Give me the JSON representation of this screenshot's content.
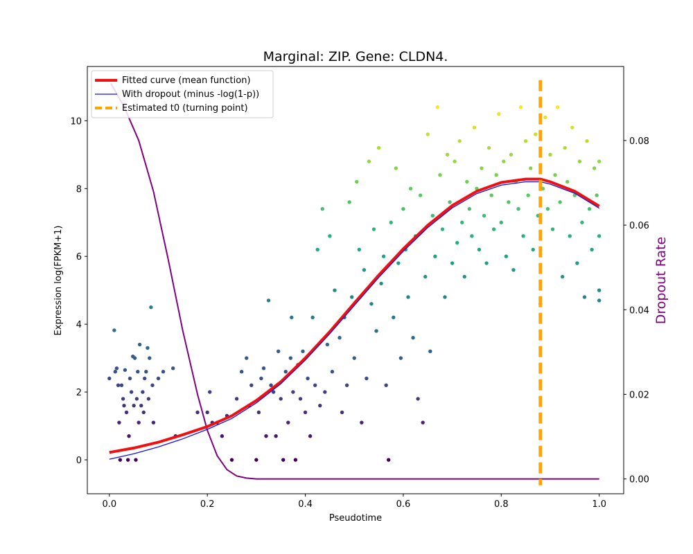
{
  "chart_data": {
    "type": "scatter",
    "title": "Marginal: ZIP. Gene: CLDN4.",
    "xlabel": "Pseudotime",
    "ylabel": "Expression log(FPKM+1)",
    "ylabel_right": "Dropout Rate",
    "xlim": [
      -0.045,
      1.05
    ],
    "ylim": [
      -1.0,
      11.6
    ],
    "ylim_right": [
      -0.0035,
      0.0975
    ],
    "x_ticks": [
      "0.0",
      "0.2",
      "0.4",
      "0.6",
      "0.8",
      "1.0"
    ],
    "y_ticks": [
      "0",
      "2",
      "4",
      "6",
      "8",
      "10"
    ],
    "y_right_ticks": [
      "0.00",
      "0.02",
      "0.04",
      "0.06",
      "0.08"
    ],
    "grid": false,
    "legend_position": "top-left",
    "legend": [
      {
        "label": "Fitted curve (mean function)",
        "color": "#ee1111",
        "style": "solid-thick"
      },
      {
        "label": "With dropout (minus -log(1-p))",
        "color": "#1111ee",
        "style": "solid-thin"
      },
      {
        "label": "Estimated t0 (turning point)",
        "color": "#ffa500",
        "style": "dashed"
      }
    ],
    "colors": {
      "fitted": "#ee1111",
      "dropout_curve": "#1111ee",
      "t0": "#ffa500",
      "dropout_rate": "#800080",
      "scatter_colormap": "viridis"
    },
    "t0": 0.88,
    "fitted_curve": {
      "x": [
        0.0,
        0.05,
        0.1,
        0.15,
        0.2,
        0.25,
        0.3,
        0.35,
        0.4,
        0.45,
        0.5,
        0.55,
        0.6,
        0.65,
        0.7,
        0.75,
        0.8,
        0.85,
        0.88,
        0.9,
        0.95,
        1.0
      ],
      "y": [
        0.22,
        0.35,
        0.52,
        0.74,
        0.98,
        1.3,
        1.75,
        2.3,
        3.0,
        3.78,
        4.62,
        5.45,
        6.22,
        6.92,
        7.5,
        7.92,
        8.18,
        8.28,
        8.28,
        8.2,
        7.92,
        7.48
      ]
    },
    "dropout_curve": {
      "x": [
        0.0,
        0.05,
        0.1,
        0.15,
        0.2,
        0.25,
        0.3,
        0.35,
        0.4,
        0.45,
        0.5,
        0.55,
        0.6,
        0.65,
        0.7,
        0.75,
        0.8,
        0.85,
        0.88,
        0.9,
        0.95,
        1.0
      ],
      "y": [
        0.02,
        0.18,
        0.38,
        0.62,
        0.9,
        1.22,
        1.68,
        2.24,
        2.94,
        3.72,
        4.55,
        5.38,
        6.15,
        6.85,
        7.43,
        7.85,
        8.1,
        8.2,
        8.2,
        8.13,
        7.86,
        7.42
      ]
    },
    "dropout_rate_curve": {
      "x": [
        0.003,
        0.03,
        0.06,
        0.09,
        0.12,
        0.15,
        0.18,
        0.2,
        0.22,
        0.24,
        0.26,
        0.28,
        0.3,
        0.32,
        0.4,
        0.6,
        0.8,
        1.0
      ],
      "y": [
        0.0935,
        0.088,
        0.08,
        0.068,
        0.052,
        0.035,
        0.02,
        0.0115,
        0.0055,
        0.0022,
        0.0007,
        0.0002,
        0.0,
        0.0,
        0.0,
        0.0,
        0.0,
        0.0
      ]
    },
    "points": [
      [
        0.0,
        2.4
      ],
      [
        0.01,
        3.82
      ],
      [
        0.012,
        2.6
      ],
      [
        0.015,
        2.7
      ],
      [
        0.018,
        2.2
      ],
      [
        0.02,
        1.1
      ],
      [
        0.022,
        0.0
      ],
      [
        0.025,
        2.2
      ],
      [
        0.028,
        1.8
      ],
      [
        0.03,
        1.6
      ],
      [
        0.032,
        2.65
      ],
      [
        0.035,
        1.4
      ],
      [
        0.038,
        0.0
      ],
      [
        0.04,
        0.7
      ],
      [
        0.042,
        2.4
      ],
      [
        0.045,
        2.0
      ],
      [
        0.048,
        3.05
      ],
      [
        0.05,
        1.6
      ],
      [
        0.052,
        3.0
      ],
      [
        0.054,
        0.0
      ],
      [
        0.056,
        1.8
      ],
      [
        0.058,
        2.6
      ],
      [
        0.06,
        1.1
      ],
      [
        0.062,
        3.4
      ],
      [
        0.065,
        1.6
      ],
      [
        0.068,
        2.0
      ],
      [
        0.07,
        1.4
      ],
      [
        0.072,
        2.4
      ],
      [
        0.075,
        2.6
      ],
      [
        0.078,
        3.3
      ],
      [
        0.08,
        1.8
      ],
      [
        0.082,
        3.0
      ],
      [
        0.085,
        4.5
      ],
      [
        0.088,
        2.2
      ],
      [
        0.09,
        1.1
      ],
      [
        0.1,
        2.4
      ],
      [
        0.11,
        2.6
      ],
      [
        0.13,
        2.7
      ],
      [
        0.135,
        0.7
      ],
      [
        0.18,
        1.4
      ],
      [
        0.2,
        1.4
      ],
      [
        0.205,
        2.0
      ],
      [
        0.21,
        1.1
      ],
      [
        0.22,
        1.1
      ],
      [
        0.23,
        0.7
      ],
      [
        0.24,
        1.3
      ],
      [
        0.25,
        0.0
      ],
      [
        0.26,
        1.8
      ],
      [
        0.27,
        2.6
      ],
      [
        0.28,
        3.0
      ],
      [
        0.285,
        1.6
      ],
      [
        0.29,
        2.2
      ],
      [
        0.3,
        0.0
      ],
      [
        0.305,
        1.4
      ],
      [
        0.31,
        2.4
      ],
      [
        0.315,
        2.7
      ],
      [
        0.32,
        0.7
      ],
      [
        0.325,
        4.7
      ],
      [
        0.33,
        2.2
      ],
      [
        0.335,
        2.0
      ],
      [
        0.34,
        0.7
      ],
      [
        0.345,
        3.2
      ],
      [
        0.35,
        1.8
      ],
      [
        0.355,
        0.0
      ],
      [
        0.36,
        2.6
      ],
      [
        0.365,
        1.1
      ],
      [
        0.37,
        3.0
      ],
      [
        0.372,
        4.2
      ],
      [
        0.375,
        2.0
      ],
      [
        0.38,
        0.0
      ],
      [
        0.385,
        2.8
      ],
      [
        0.39,
        1.8
      ],
      [
        0.395,
        3.2
      ],
      [
        0.4,
        1.4
      ],
      [
        0.405,
        2.4
      ],
      [
        0.41,
        0.7
      ],
      [
        0.415,
        4.2
      ],
      [
        0.42,
        2.2
      ],
      [
        0.425,
        6.2
      ],
      [
        0.43,
        1.6
      ],
      [
        0.435,
        7.4
      ],
      [
        0.44,
        2.0
      ],
      [
        0.445,
        3.4
      ],
      [
        0.45,
        6.6
      ],
      [
        0.455,
        2.6
      ],
      [
        0.46,
        5.0
      ],
      [
        0.47,
        3.6
      ],
      [
        0.475,
        1.4
      ],
      [
        0.48,
        4.2
      ],
      [
        0.485,
        2.2
      ],
      [
        0.49,
        7.6
      ],
      [
        0.495,
        4.8
      ],
      [
        0.5,
        3.0
      ],
      [
        0.505,
        8.2
      ],
      [
        0.51,
        6.2
      ],
      [
        0.515,
        1.1
      ],
      [
        0.52,
        5.6
      ],
      [
        0.525,
        2.4
      ],
      [
        0.53,
        8.8
      ],
      [
        0.535,
        4.6
      ],
      [
        0.54,
        6.8
      ],
      [
        0.545,
        3.8
      ],
      [
        0.55,
        9.2
      ],
      [
        0.555,
        5.2
      ],
      [
        0.56,
        6.0
      ],
      [
        0.565,
        2.2
      ],
      [
        0.57,
        0.0
      ],
      [
        0.575,
        7.0
      ],
      [
        0.58,
        4.2
      ],
      [
        0.585,
        8.6
      ],
      [
        0.59,
        5.8
      ],
      [
        0.595,
        3.0
      ],
      [
        0.6,
        7.4
      ],
      [
        0.605,
        6.2
      ],
      [
        0.61,
        4.8
      ],
      [
        0.615,
        8.0
      ],
      [
        0.62,
        3.6
      ],
      [
        0.625,
        6.6
      ],
      [
        0.63,
        1.8
      ],
      [
        0.635,
        7.8
      ],
      [
        0.64,
        1.1
      ],
      [
        0.645,
        5.4
      ],
      [
        0.65,
        9.6
      ],
      [
        0.655,
        3.2
      ],
      [
        0.66,
        7.2
      ],
      [
        0.665,
        6.0
      ],
      [
        0.67,
        10.4
      ],
      [
        0.675,
        8.4
      ],
      [
        0.68,
        6.8
      ],
      [
        0.685,
        4.8
      ],
      [
        0.69,
        9.0
      ],
      [
        0.695,
        7.6
      ],
      [
        0.7,
        5.8
      ],
      [
        0.705,
        8.8
      ],
      [
        0.71,
        6.4
      ],
      [
        0.715,
        9.4
      ],
      [
        0.72,
        7.0
      ],
      [
        0.725,
        5.4
      ],
      [
        0.73,
        8.2
      ],
      [
        0.735,
        7.4
      ],
      [
        0.74,
        6.6
      ],
      [
        0.745,
        9.8
      ],
      [
        0.75,
        8.0
      ],
      [
        0.755,
        6.2
      ],
      [
        0.76,
        8.6
      ],
      [
        0.765,
        7.2
      ],
      [
        0.77,
        5.8
      ],
      [
        0.775,
        9.2
      ],
      [
        0.78,
        7.8
      ],
      [
        0.785,
        6.8
      ],
      [
        0.79,
        8.4
      ],
      [
        0.795,
        10.2
      ],
      [
        0.8,
        7.0
      ],
      [
        0.805,
        8.8
      ],
      [
        0.81,
        6.0
      ],
      [
        0.815,
        7.6
      ],
      [
        0.82,
        9.0
      ],
      [
        0.825,
        5.6
      ],
      [
        0.83,
        8.2
      ],
      [
        0.835,
        7.4
      ],
      [
        0.84,
        10.4
      ],
      [
        0.845,
        6.6
      ],
      [
        0.85,
        9.4
      ],
      [
        0.855,
        7.8
      ],
      [
        0.86,
        8.6
      ],
      [
        0.865,
        6.2
      ],
      [
        0.87,
        9.6
      ],
      [
        0.875,
        7.2
      ],
      [
        0.88,
        4.6
      ],
      [
        0.885,
        8.0
      ],
      [
        0.89,
        10.1
      ],
      [
        0.895,
        7.4
      ],
      [
        0.9,
        9.0
      ],
      [
        0.905,
        6.8
      ],
      [
        0.91,
        8.4
      ],
      [
        0.915,
        10.4
      ],
      [
        0.92,
        7.6
      ],
      [
        0.925,
        5.4
      ],
      [
        0.93,
        9.2
      ],
      [
        0.935,
        8.2
      ],
      [
        0.94,
        6.6
      ],
      [
        0.945,
        9.8
      ],
      [
        0.95,
        7.8
      ],
      [
        0.955,
        5.8
      ],
      [
        0.96,
        8.8
      ],
      [
        0.965,
        7.0
      ],
      [
        0.97,
        4.8
      ],
      [
        0.975,
        9.4
      ],
      [
        0.98,
        7.4
      ],
      [
        0.985,
        6.2
      ],
      [
        0.99,
        8.6
      ],
      [
        0.995,
        7.8
      ],
      [
        1.0,
        5.0
      ],
      [
        1.0,
        4.7
      ],
      [
        1.0,
        8.8
      ],
      [
        1.0,
        6.6
      ]
    ]
  }
}
